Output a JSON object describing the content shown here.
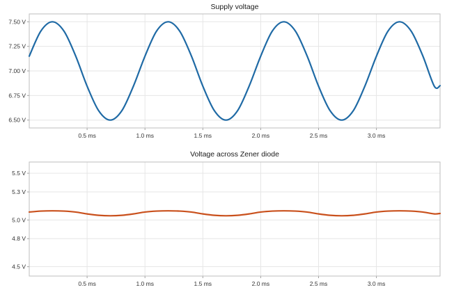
{
  "chart_data": [
    {
      "type": "line",
      "title": "Supply voltage",
      "xlabel": "",
      "ylabel": "",
      "xlim": [
        0,
        3.55
      ],
      "ylim": [
        6.42,
        7.58
      ],
      "grid": true,
      "x_ticks": [
        0.5,
        1.0,
        1.5,
        2.0,
        2.5,
        3.0
      ],
      "x_tick_labels": [
        "0.5 ms",
        "1.0 ms",
        "1.5 ms",
        "2.0 ms",
        "2.5 ms",
        "3.0 ms"
      ],
      "y_ticks": [
        6.5,
        6.75,
        7.0,
        7.25,
        7.5
      ],
      "y_tick_labels": [
        "6.50 V",
        "6.75 V",
        "7.00 V",
        "7.25 V",
        "7.50 V"
      ],
      "color": "#1f6aa5",
      "series": [
        {
          "x": [
            0.0,
            0.1,
            0.2,
            0.3,
            0.4,
            0.5,
            0.6,
            0.7,
            0.8,
            0.9,
            1.0,
            1.1,
            1.2,
            1.3,
            1.4,
            1.5,
            1.6,
            1.7,
            1.8,
            1.9,
            2.0,
            2.1,
            2.2,
            2.3,
            2.4,
            2.5,
            2.6,
            2.7,
            2.8,
            2.9,
            3.0,
            3.1,
            3.2,
            3.3,
            3.4,
            3.5,
            3.55
          ],
          "values": [
            7.15,
            7.405,
            7.5,
            7.405,
            7.155,
            6.845,
            6.595,
            6.5,
            6.595,
            6.845,
            7.15,
            7.405,
            7.5,
            7.405,
            7.155,
            6.845,
            6.595,
            6.5,
            6.595,
            6.845,
            7.15,
            7.405,
            7.5,
            7.405,
            7.155,
            6.845,
            6.595,
            6.5,
            6.595,
            6.845,
            7.15,
            7.405,
            7.5,
            7.405,
            7.155,
            6.845,
            6.85
          ]
        }
      ]
    },
    {
      "type": "line",
      "title": "Voltage across Zener diode",
      "xlabel": "",
      "ylabel": "",
      "xlim": [
        0,
        3.55
      ],
      "ylim": [
        4.4,
        5.62
      ],
      "grid": true,
      "x_ticks": [
        0.5,
        1.0,
        1.5,
        2.0,
        2.5,
        3.0
      ],
      "x_tick_labels": [
        "0.5 ms",
        "1.0 ms",
        "1.5 ms",
        "2.0 ms",
        "2.5 ms",
        "3.0 ms"
      ],
      "y_ticks": [
        4.5,
        4.8,
        5.0,
        5.3,
        5.5
      ],
      "y_tick_labels": [
        "4.5 V",
        "4.8 V",
        "5.0 V",
        "5.3 V",
        "5.5 V"
      ],
      "color": "#c9501c",
      "series": [
        {
          "x": [
            0.0,
            0.1,
            0.2,
            0.3,
            0.4,
            0.5,
            0.6,
            0.7,
            0.8,
            0.9,
            1.0,
            1.1,
            1.2,
            1.3,
            1.4,
            1.5,
            1.6,
            1.7,
            1.8,
            1.9,
            2.0,
            2.1,
            2.2,
            2.3,
            2.4,
            2.5,
            2.6,
            2.7,
            2.8,
            2.9,
            3.0,
            3.1,
            3.2,
            3.3,
            3.4,
            3.5,
            3.55
          ],
          "values": [
            5.085,
            5.095,
            5.098,
            5.095,
            5.085,
            5.065,
            5.05,
            5.045,
            5.05,
            5.065,
            5.085,
            5.095,
            5.098,
            5.095,
            5.085,
            5.065,
            5.05,
            5.045,
            5.05,
            5.065,
            5.085,
            5.095,
            5.098,
            5.095,
            5.085,
            5.065,
            5.05,
            5.045,
            5.05,
            5.065,
            5.085,
            5.095,
            5.098,
            5.095,
            5.085,
            5.065,
            5.07
          ]
        }
      ]
    }
  ]
}
